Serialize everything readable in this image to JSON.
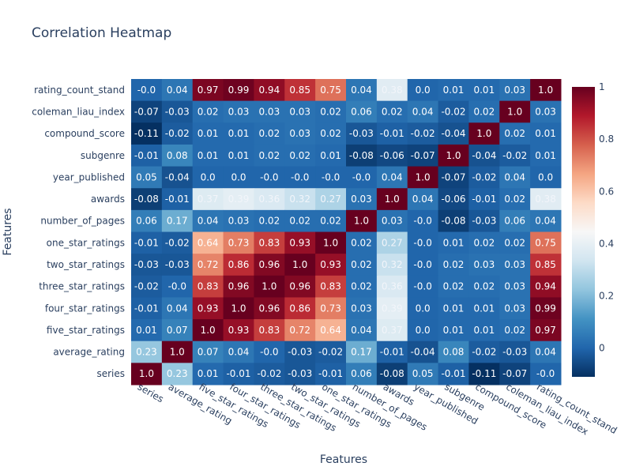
{
  "chart_data": {
    "type": "heatmap",
    "title": "Correlation Heatmap",
    "xlabel": "Features",
    "ylabel": "Features",
    "x_categories": [
      "series",
      "average_rating",
      "five_star_ratings",
      "four_star_ratings",
      "three_star_ratings",
      "two_star_ratings",
      "one_star_ratings",
      "number_of_pages",
      "awards",
      "year_published",
      "subgenre",
      "compound_score",
      "coleman_liau_index",
      "rating_count_stand"
    ],
    "y_categories_top_to_bottom": [
      "rating_count_stand",
      "coleman_liau_index",
      "compound_score",
      "subgenre",
      "year_published",
      "awards",
      "number_of_pages",
      "one_star_ratings",
      "two_star_ratings",
      "three_star_ratings",
      "four_star_ratings",
      "five_star_ratings",
      "average_rating",
      "series"
    ],
    "value_labels": [
      [
        "-0.0",
        "0.04",
        "0.97",
        "0.99",
        "0.94",
        "0.85",
        "0.75",
        "0.04",
        "0.38",
        "0.0",
        "0.01",
        "0.01",
        "0.03",
        "1.0"
      ],
      [
        "-0.07",
        "-0.03",
        "0.02",
        "0.03",
        "0.03",
        "0.03",
        "0.02",
        "0.06",
        "0.02",
        "0.04",
        "-0.02",
        "0.02",
        "1.0",
        "0.03"
      ],
      [
        "-0.11",
        "-0.02",
        "0.01",
        "0.01",
        "0.02",
        "0.03",
        "0.02",
        "-0.03",
        "-0.01",
        "-0.02",
        "-0.04",
        "1.0",
        "0.02",
        "0.01"
      ],
      [
        "-0.01",
        "0.08",
        "0.01",
        "0.01",
        "0.02",
        "0.02",
        "0.01",
        "-0.08",
        "-0.06",
        "-0.07",
        "1.0",
        "-0.04",
        "-0.02",
        "0.01"
      ],
      [
        "0.05",
        "-0.04",
        "0.0",
        "0.0",
        "-0.0",
        "-0.0",
        "-0.0",
        "-0.0",
        "0.04",
        "1.0",
        "-0.07",
        "-0.02",
        "0.04",
        "0.0"
      ],
      [
        "-0.08",
        "-0.01",
        "0.37",
        "0.39",
        "0.36",
        "0.32",
        "0.27",
        "0.03",
        "1.0",
        "0.04",
        "-0.06",
        "-0.01",
        "0.02",
        "0.38"
      ],
      [
        "0.06",
        "0.17",
        "0.04",
        "0.03",
        "0.02",
        "0.02",
        "0.02",
        "1.0",
        "0.03",
        "-0.0",
        "-0.08",
        "-0.03",
        "0.06",
        "0.04"
      ],
      [
        "-0.01",
        "-0.02",
        "0.64",
        "0.73",
        "0.83",
        "0.93",
        "1.0",
        "0.02",
        "0.27",
        "-0.0",
        "0.01",
        "0.02",
        "0.02",
        "0.75"
      ],
      [
        "-0.03",
        "-0.03",
        "0.72",
        "0.86",
        "0.96",
        "1.0",
        "0.93",
        "0.02",
        "0.32",
        "-0.0",
        "0.02",
        "0.03",
        "0.03",
        "0.85"
      ],
      [
        "-0.02",
        "-0.0",
        "0.83",
        "0.96",
        "1.0",
        "0.96",
        "0.83",
        "0.02",
        "0.36",
        "-0.0",
        "0.02",
        "0.02",
        "0.03",
        "0.94"
      ],
      [
        "-0.01",
        "0.04",
        "0.93",
        "1.0",
        "0.96",
        "0.86",
        "0.73",
        "0.03",
        "0.39",
        "0.0",
        "0.01",
        "0.01",
        "0.03",
        "0.99"
      ],
      [
        "0.01",
        "0.07",
        "1.0",
        "0.93",
        "0.83",
        "0.72",
        "0.64",
        "0.04",
        "0.37",
        "0.0",
        "0.01",
        "0.01",
        "0.02",
        "0.97"
      ],
      [
        "0.23",
        "1.0",
        "0.07",
        "0.04",
        "-0.0",
        "-0.03",
        "-0.02",
        "0.17",
        "-0.01",
        "-0.04",
        "0.08",
        "-0.02",
        "-0.03",
        "0.04"
      ],
      [
        "1.0",
        "0.23",
        "0.01",
        "-0.01",
        "-0.02",
        "-0.03",
        "-0.01",
        "0.06",
        "-0.08",
        "0.05",
        "-0.01",
        "-0.11",
        "-0.07",
        "-0.0"
      ]
    ],
    "colorscale": "RdBu_r",
    "zrange": [
      -0.11,
      1.0
    ],
    "colorbar_ticks": [
      "0",
      "0.2",
      "0.4",
      "0.6",
      "0.8",
      "1"
    ],
    "colorbar_tick_values": [
      0,
      0.2,
      0.4,
      0.6,
      0.8,
      1.0
    ],
    "legend": "colorbar-right"
  }
}
